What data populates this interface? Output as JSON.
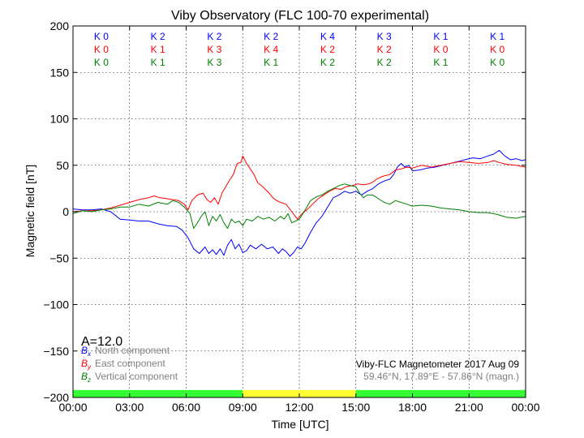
{
  "chart_data": {
    "type": "line",
    "title": "Viby Observatory (FLC 100-70 experimental)",
    "xlabel": "Time [UTC]",
    "ylabel": "Magnetic field [nT]",
    "xlim": [
      0,
      24
    ],
    "ylim": [
      -200,
      200
    ],
    "x_ticks": [
      0,
      3,
      6,
      9,
      12,
      15,
      18,
      21,
      24
    ],
    "x_tick_labels": [
      "00:00",
      "03:00",
      "06:00",
      "09:00",
      "12:00",
      "15:00",
      "18:00",
      "21:00",
      "00:00"
    ],
    "y_ticks": [
      -200,
      -150,
      -100,
      -50,
      0,
      50,
      100,
      150,
      200
    ],
    "y_tick_labels": [
      "−200",
      "−150",
      "−100",
      "−50",
      "0",
      "50",
      "100",
      "150",
      "200"
    ],
    "grid": true,
    "series": [
      {
        "name": "North component",
        "symbol": "B",
        "subscript": "x",
        "color": "#0000ff",
        "points": [
          [
            0.0,
            3
          ],
          [
            0.5,
            2
          ],
          [
            1.0,
            2
          ],
          [
            1.5,
            3
          ],
          [
            2.0,
            0
          ],
          [
            2.5,
            -8
          ],
          [
            3.0,
            -9
          ],
          [
            3.5,
            -10
          ],
          [
            4.0,
            -10
          ],
          [
            4.5,
            -13
          ],
          [
            5.0,
            -15
          ],
          [
            5.5,
            -16
          ],
          [
            5.8,
            -20
          ],
          [
            6.1,
            -28
          ],
          [
            6.4,
            -40
          ],
          [
            6.7,
            -45
          ],
          [
            7.0,
            -38
          ],
          [
            7.2,
            -45
          ],
          [
            7.4,
            -41
          ],
          [
            7.6,
            -46
          ],
          [
            7.8,
            -40
          ],
          [
            8.0,
            -47
          ],
          [
            8.2,
            -36
          ],
          [
            8.4,
            -30
          ],
          [
            8.6,
            -40
          ],
          [
            8.8,
            -35
          ],
          [
            9.0,
            -44
          ],
          [
            9.2,
            -42
          ],
          [
            9.4,
            -36
          ],
          [
            9.7,
            -40
          ],
          [
            10.0,
            -35
          ],
          [
            10.3,
            -40
          ],
          [
            10.6,
            -38
          ],
          [
            10.9,
            -45
          ],
          [
            11.1,
            -40
          ],
          [
            11.3,
            -43
          ],
          [
            11.5,
            -48
          ],
          [
            11.7,
            -44
          ],
          [
            11.9,
            -38
          ],
          [
            12.1,
            -40
          ],
          [
            12.3,
            -34
          ],
          [
            12.6,
            -22
          ],
          [
            12.9,
            -12
          ],
          [
            13.2,
            -5
          ],
          [
            13.5,
            5
          ],
          [
            13.8,
            15
          ],
          [
            14.1,
            18
          ],
          [
            14.4,
            22
          ],
          [
            14.7,
            20
          ],
          [
            15.0,
            22
          ],
          [
            15.3,
            18
          ],
          [
            15.6,
            22
          ],
          [
            15.9,
            25
          ],
          [
            16.2,
            30
          ],
          [
            16.5,
            33
          ],
          [
            16.8,
            35
          ],
          [
            17.0,
            40
          ],
          [
            17.2,
            48
          ],
          [
            17.4,
            52
          ],
          [
            17.6,
            48
          ],
          [
            17.8,
            50
          ],
          [
            18.0,
            44
          ],
          [
            18.4,
            45
          ],
          [
            18.8,
            47
          ],
          [
            19.2,
            48
          ],
          [
            19.6,
            50
          ],
          [
            20.0,
            52
          ],
          [
            20.4,
            54
          ],
          [
            20.8,
            56
          ],
          [
            21.2,
            58
          ],
          [
            21.6,
            57
          ],
          [
            22.0,
            60
          ],
          [
            22.3,
            62
          ],
          [
            22.6,
            66
          ],
          [
            22.9,
            60
          ],
          [
            23.2,
            56
          ],
          [
            23.5,
            57
          ],
          [
            23.8,
            55
          ],
          [
            24.0,
            56
          ]
        ]
      },
      {
        "name": "East component",
        "symbol": "B",
        "subscript": "y",
        "color": "#ff0000",
        "points": [
          [
            0.0,
            0
          ],
          [
            0.5,
            1
          ],
          [
            1.0,
            1
          ],
          [
            1.5,
            2
          ],
          [
            2.0,
            4
          ],
          [
            2.5,
            7
          ],
          [
            3.0,
            10
          ],
          [
            3.5,
            13
          ],
          [
            4.0,
            15
          ],
          [
            4.3,
            17
          ],
          [
            4.6,
            15
          ],
          [
            5.0,
            14
          ],
          [
            5.3,
            13
          ],
          [
            5.6,
            12
          ],
          [
            5.9,
            8
          ],
          [
            6.1,
            2
          ],
          [
            6.3,
            12
          ],
          [
            6.6,
            18
          ],
          [
            6.9,
            20
          ],
          [
            7.1,
            13
          ],
          [
            7.3,
            10
          ],
          [
            7.5,
            15
          ],
          [
            7.7,
            8
          ],
          [
            7.9,
            20
          ],
          [
            8.1,
            27
          ],
          [
            8.3,
            34
          ],
          [
            8.5,
            40
          ],
          [
            8.7,
            52
          ],
          [
            8.9,
            53
          ],
          [
            9.0,
            60
          ],
          [
            9.2,
            52
          ],
          [
            9.4,
            46
          ],
          [
            9.6,
            40
          ],
          [
            9.8,
            31
          ],
          [
            10.0,
            28
          ],
          [
            10.2,
            24
          ],
          [
            10.4,
            20
          ],
          [
            10.6,
            15
          ],
          [
            10.8,
            12
          ],
          [
            11.0,
            10
          ],
          [
            11.3,
            8
          ],
          [
            11.6,
            0
          ],
          [
            11.9,
            -8
          ],
          [
            12.1,
            -3
          ],
          [
            12.4,
            2
          ],
          [
            12.7,
            8
          ],
          [
            13.0,
            14
          ],
          [
            13.3,
            18
          ],
          [
            13.6,
            22
          ],
          [
            13.9,
            25
          ],
          [
            14.2,
            24
          ],
          [
            14.5,
            27
          ],
          [
            14.8,
            28
          ],
          [
            15.1,
            30
          ],
          [
            15.4,
            29
          ],
          [
            15.7,
            30
          ],
          [
            15.9,
            32
          ],
          [
            16.1,
            35
          ],
          [
            16.4,
            38
          ],
          [
            16.8,
            40
          ],
          [
            17.1,
            45
          ],
          [
            17.4,
            46
          ],
          [
            17.7,
            48
          ],
          [
            18.0,
            47
          ],
          [
            18.5,
            50
          ],
          [
            19.0,
            48
          ],
          [
            19.5,
            50
          ],
          [
            20.0,
            52
          ],
          [
            20.5,
            54
          ],
          [
            21.0,
            53
          ],
          [
            21.5,
            52
          ],
          [
            22.0,
            53
          ],
          [
            22.3,
            55
          ],
          [
            22.6,
            53
          ],
          [
            23.0,
            51
          ],
          [
            23.5,
            50
          ],
          [
            24.0,
            48
          ]
        ]
      },
      {
        "name": "Vertical component",
        "symbol": "B",
        "subscript": "z",
        "color": "#008000",
        "points": [
          [
            0.0,
            -2
          ],
          [
            0.5,
            1
          ],
          [
            1.0,
            0
          ],
          [
            1.5,
            2
          ],
          [
            2.0,
            3
          ],
          [
            2.5,
            5
          ],
          [
            3.0,
            5
          ],
          [
            3.5,
            8
          ],
          [
            4.0,
            6
          ],
          [
            4.5,
            10
          ],
          [
            5.0,
            8
          ],
          [
            5.3,
            12
          ],
          [
            5.6,
            10
          ],
          [
            5.9,
            5
          ],
          [
            6.2,
            -2
          ],
          [
            6.4,
            -18
          ],
          [
            6.6,
            -12
          ],
          [
            6.8,
            -5
          ],
          [
            7.0,
            0
          ],
          [
            7.2,
            -15
          ],
          [
            7.4,
            -5
          ],
          [
            7.6,
            -10
          ],
          [
            7.8,
            -3
          ],
          [
            8.0,
            -12
          ],
          [
            8.2,
            -18
          ],
          [
            8.4,
            -8
          ],
          [
            8.6,
            -12
          ],
          [
            8.8,
            -10
          ],
          [
            9.0,
            -15
          ],
          [
            9.2,
            -8
          ],
          [
            9.5,
            -10
          ],
          [
            9.8,
            -5
          ],
          [
            10.1,
            -8
          ],
          [
            10.4,
            -6
          ],
          [
            10.7,
            -10
          ],
          [
            11.0,
            -5
          ],
          [
            11.2,
            -8
          ],
          [
            11.4,
            -2
          ],
          [
            11.6,
            -12
          ],
          [
            11.8,
            -10
          ],
          [
            12.0,
            -8
          ],
          [
            12.2,
            -2
          ],
          [
            12.4,
            5
          ],
          [
            12.6,
            12
          ],
          [
            12.9,
            16
          ],
          [
            13.2,
            18
          ],
          [
            13.5,
            22
          ],
          [
            13.8,
            25
          ],
          [
            14.1,
            28
          ],
          [
            14.4,
            30
          ],
          [
            14.7,
            28
          ],
          [
            15.0,
            27
          ],
          [
            15.2,
            20
          ],
          [
            15.4,
            15
          ],
          [
            15.6,
            18
          ],
          [
            15.9,
            18
          ],
          [
            16.2,
            14
          ],
          [
            16.5,
            10
          ],
          [
            16.8,
            8
          ],
          [
            17.1,
            12
          ],
          [
            17.4,
            10
          ],
          [
            17.7,
            8
          ],
          [
            18.0,
            6
          ],
          [
            18.5,
            7
          ],
          [
            19.0,
            6
          ],
          [
            19.5,
            4
          ],
          [
            20.0,
            3
          ],
          [
            20.5,
            2
          ],
          [
            21.0,
            0
          ],
          [
            21.5,
            -1
          ],
          [
            22.0,
            -1
          ],
          [
            22.5,
            -3
          ],
          [
            23.0,
            -6
          ],
          [
            23.5,
            -7
          ],
          [
            24.0,
            -5
          ]
        ]
      }
    ],
    "k_index_rows": [
      {
        "color": "#0000ff",
        "labels": [
          "K 0",
          "K 2",
          "K 2",
          "K 2",
          "K 4",
          "K 3",
          "K 1",
          "K 1"
        ]
      },
      {
        "color": "#ff0000",
        "labels": [
          "K 0",
          "K 1",
          "K 3",
          "K 4",
          "K 2",
          "K 2",
          "K 0",
          "K 0"
        ]
      },
      {
        "color": "#008000",
        "labels": [
          "K 0",
          "K 1",
          "K 3",
          "K 1",
          "K 2",
          "K 2",
          "K 1",
          "K 0"
        ]
      }
    ],
    "a_index": "A=12.0",
    "station_text": "Viby-FLC Magnetometer 2017 Aug 09",
    "coords_text": "59.46°N, 17.89°E - 57.86°N (magn.)",
    "daylight_bar": [
      {
        "from": 0,
        "to": 9,
        "color": "#33ff33"
      },
      {
        "from": 9,
        "to": 15,
        "color": "#ffff33"
      },
      {
        "from": 15,
        "to": 24,
        "color": "#33ff33"
      }
    ]
  }
}
